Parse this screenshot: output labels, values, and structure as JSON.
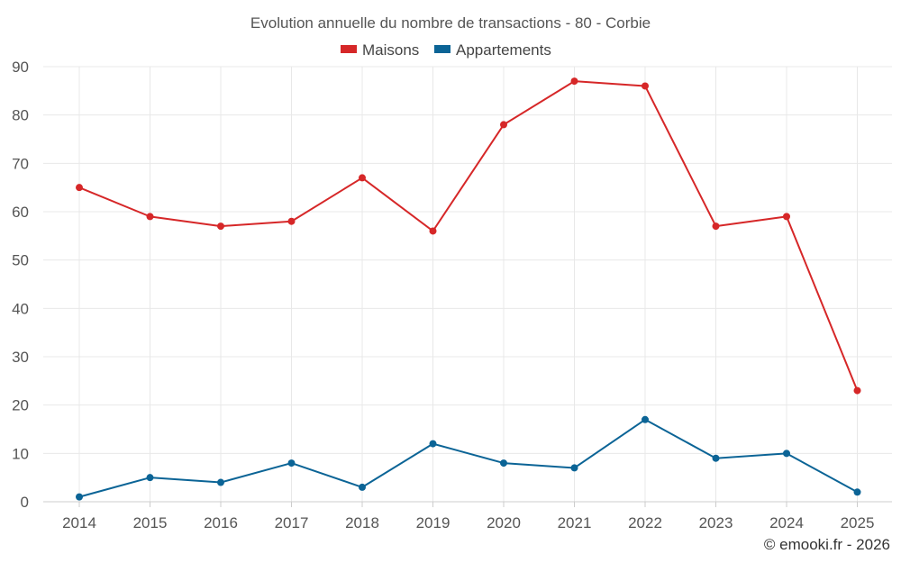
{
  "chart_data": {
    "type": "line",
    "title": "Evolution annuelle du nombre de transactions - 80 - Corbie",
    "categories": [
      "2014",
      "2015",
      "2016",
      "2017",
      "2018",
      "2019",
      "2020",
      "2021",
      "2022",
      "2023",
      "2024",
      "2025"
    ],
    "series": [
      {
        "name": "Maisons",
        "color": "#d62728",
        "values": [
          65,
          59,
          57,
          58,
          67,
          56,
          78,
          87,
          86,
          57,
          59,
          23
        ]
      },
      {
        "name": "Appartements",
        "color": "#0b6496",
        "values": [
          1,
          5,
          4,
          8,
          3,
          12,
          8,
          7,
          17,
          9,
          10,
          2
        ]
      }
    ],
    "ylim": [
      0,
      90
    ],
    "yticks": [
      0,
      10,
      20,
      30,
      40,
      50,
      60,
      70,
      80,
      90
    ],
    "xlabel": "",
    "ylabel": "",
    "grid": true,
    "legend_position": "top-center"
  },
  "credit": "© emooki.fr - 2026"
}
